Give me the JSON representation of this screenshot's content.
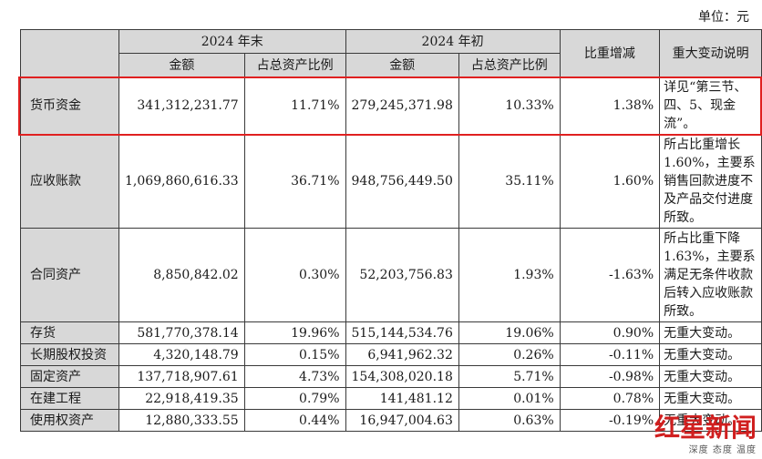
{
  "unit_label": "单位：元",
  "headers": {
    "item": "",
    "period_end": "2024 年末",
    "period_start": "2024 年初",
    "change": "比重增减",
    "note": "重大变动说明",
    "amount": "金额",
    "ratio": "占总资产比例"
  },
  "rows": [
    {
      "name": "货币资金",
      "end_amount": "341,312,231.77",
      "end_ratio": "11.71%",
      "start_amount": "279,245,371.98",
      "start_ratio": "10.33%",
      "change": "1.38%",
      "note": "详见“第三节、四、5、现金流”。"
    },
    {
      "name": "应收账款",
      "end_amount": "1,069,860,616.33",
      "end_ratio": "36.71%",
      "start_amount": "948,756,449.50",
      "start_ratio": "35.11%",
      "change": "1.60%",
      "note": "所占比重增长1.60%，主要系销售回款进度不及产品交付进度所致。"
    },
    {
      "name": "合同资产",
      "end_amount": "8,850,842.02",
      "end_ratio": "0.30%",
      "start_amount": "52,203,756.83",
      "start_ratio": "1.93%",
      "change": "-1.63%",
      "note": "所占比重下降1.63%，主要系满足无条件收款后转入应收账款所致。"
    },
    {
      "name": "存货",
      "end_amount": "581,770,378.14",
      "end_ratio": "19.96%",
      "start_amount": "515,144,534.76",
      "start_ratio": "19.06%",
      "change": "0.90%",
      "note": "无重大变动。"
    },
    {
      "name": "长期股权投资",
      "end_amount": "4,320,148.79",
      "end_ratio": "0.15%",
      "start_amount": "6,941,962.32",
      "start_ratio": "0.26%",
      "change": "-0.11%",
      "note": "无重大变动。"
    },
    {
      "name": "固定资产",
      "end_amount": "137,718,907.61",
      "end_ratio": "4.73%",
      "start_amount": "154,308,020.18",
      "start_ratio": "5.71%",
      "change": "-0.98%",
      "note": "无重大变动。"
    },
    {
      "name": "在建工程",
      "end_amount": "22,918,419.35",
      "end_ratio": "0.79%",
      "start_amount": "141,481.12",
      "start_ratio": "0.01%",
      "change": "0.78%",
      "note": "无重大变动。"
    },
    {
      "name": "使用权资产",
      "end_amount": "12,880,333.55",
      "end_ratio": "0.44%",
      "start_amount": "16,947,004.63",
      "start_ratio": "0.63%",
      "change": "-0.19%",
      "note": "无重大变动。"
    }
  ],
  "watermark": {
    "main": "红星新闻",
    "sub": "深度 态度 温度"
  },
  "colors": {
    "header_bg": "#d8d8d8",
    "highlight": "#e02020",
    "watermark": "#d01f1f"
  }
}
